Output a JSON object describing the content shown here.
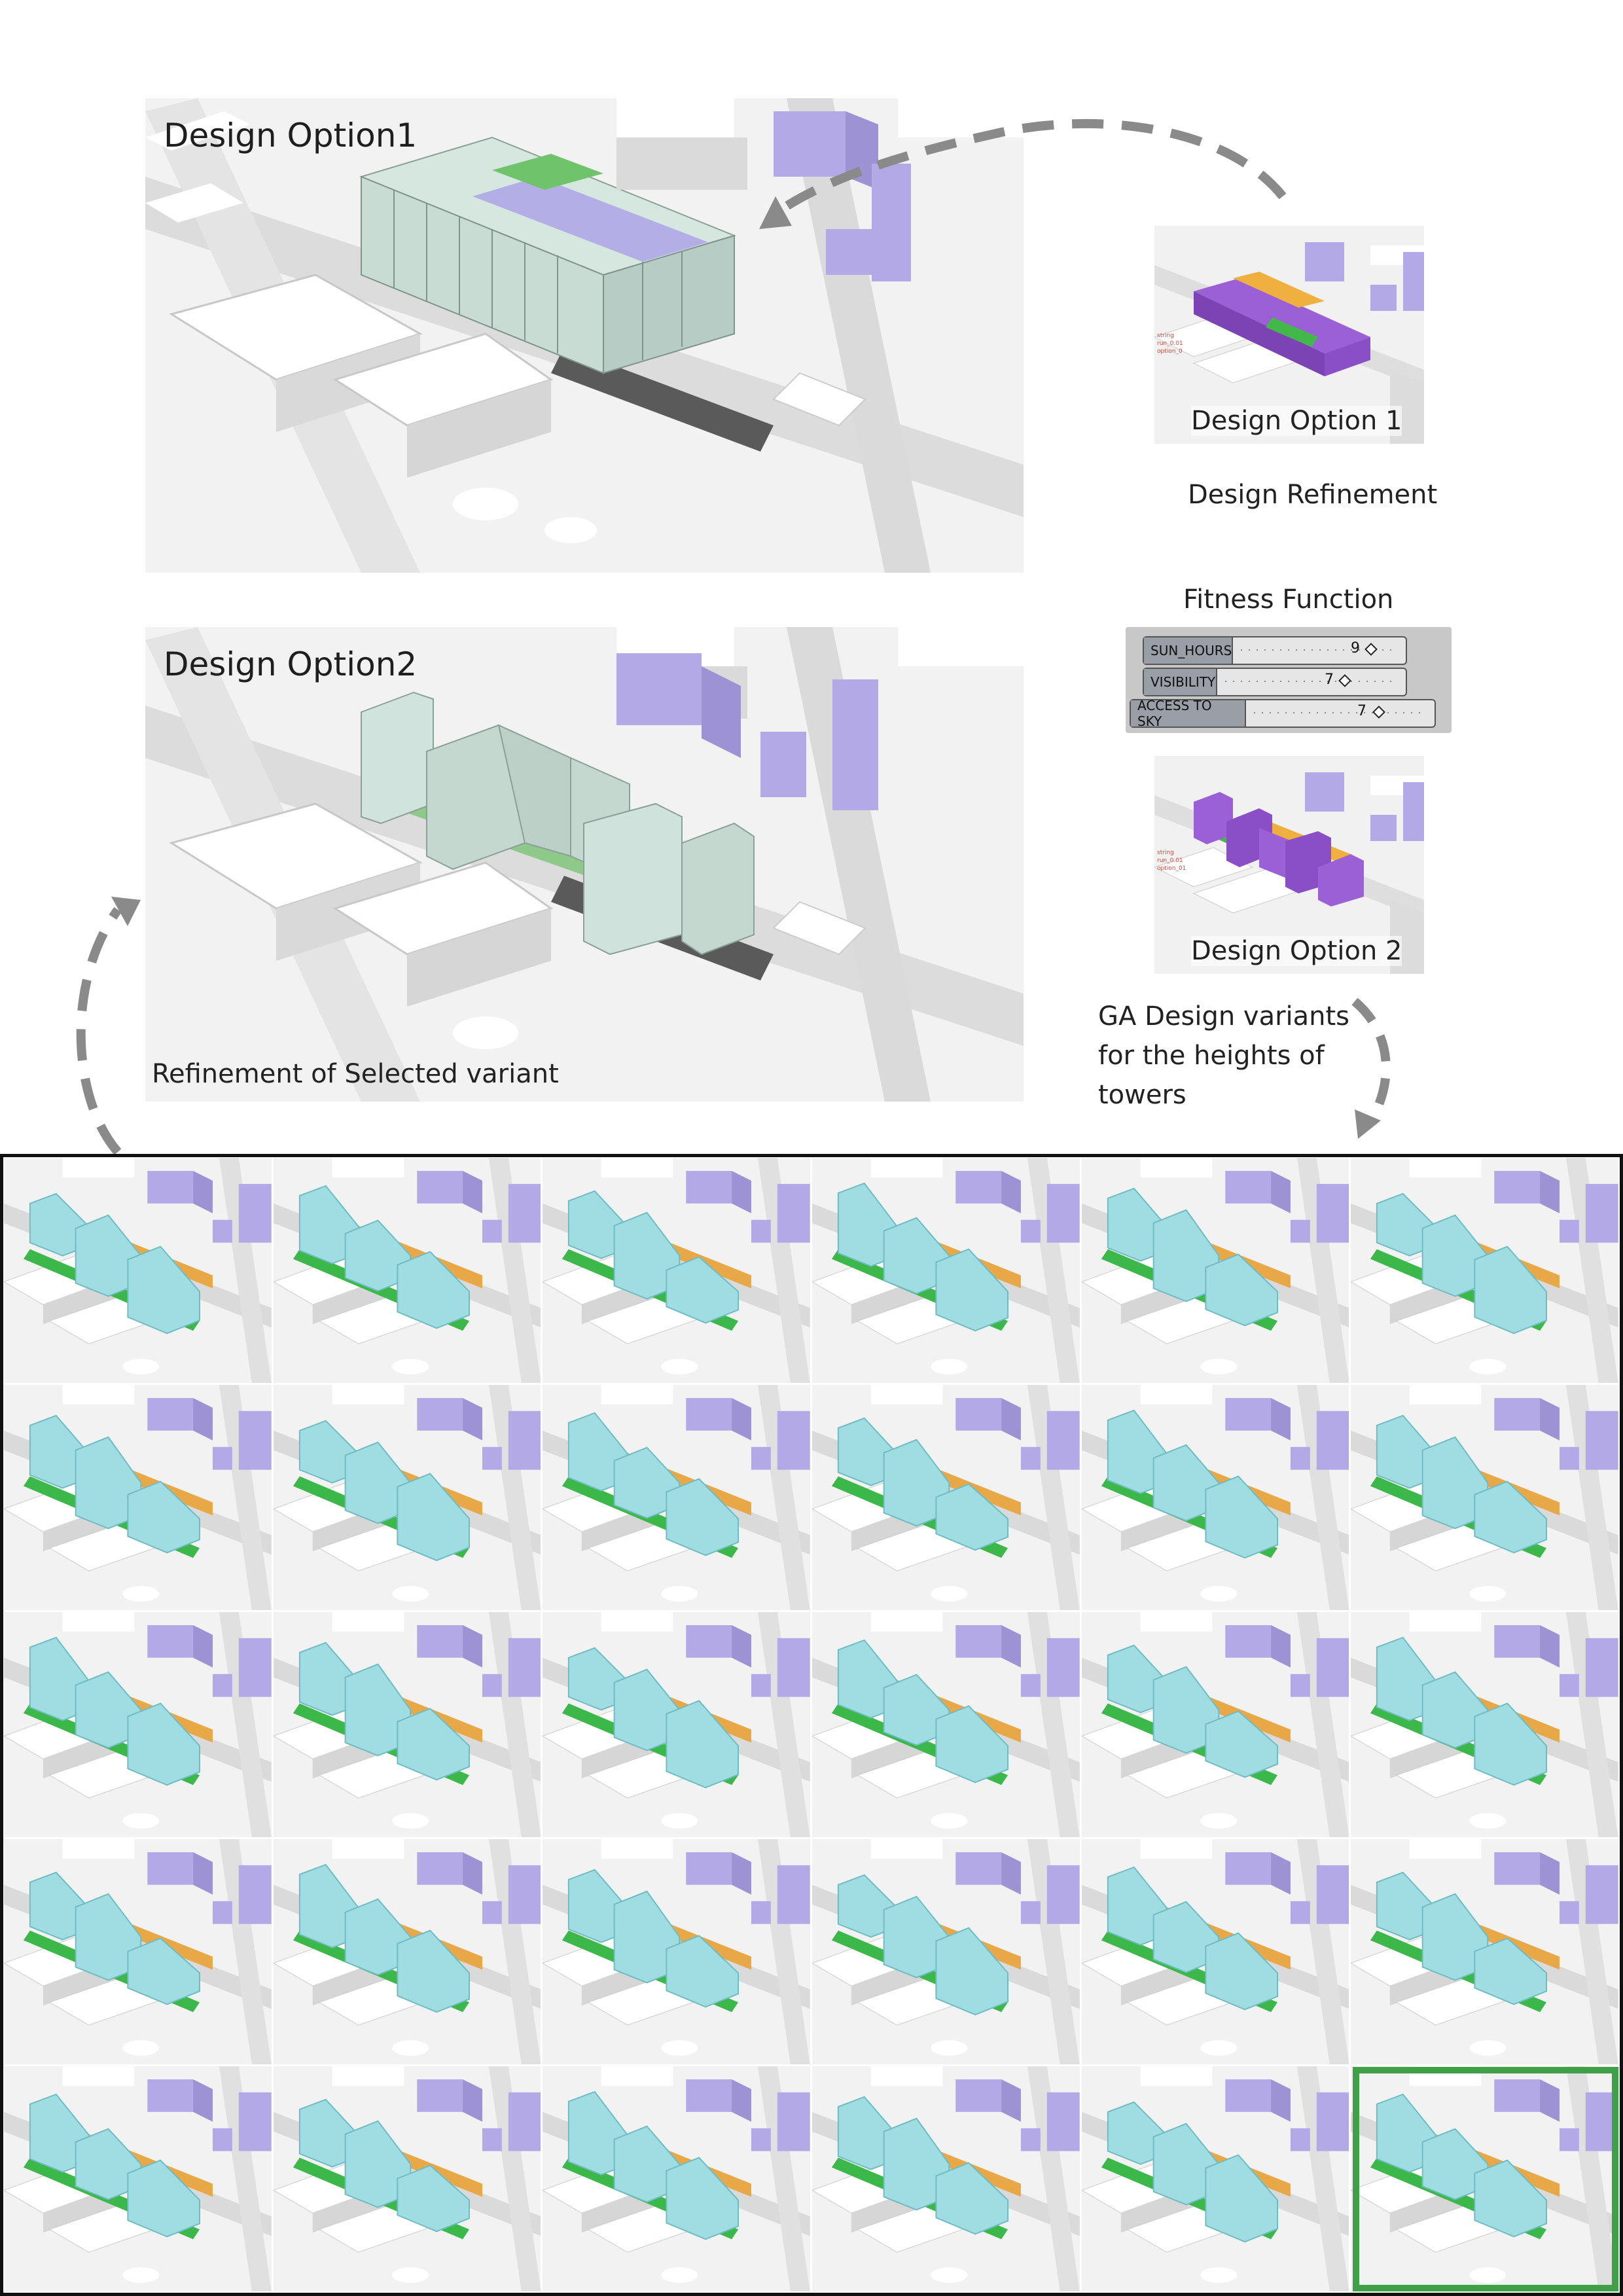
{
  "option1": {
    "title": "Design Option1"
  },
  "option2": {
    "title": "Design Option2",
    "subcaption": "Refinement of Selected variant"
  },
  "thumb1": {
    "caption": "Design Option 1"
  },
  "thumb2": {
    "caption": "Design Option 2"
  },
  "refinement_label": "Design Refinement",
  "fitness": {
    "title": "Fitness Function",
    "sliders": [
      {
        "label": "SUN_HOURS",
        "value": "9"
      },
      {
        "label": "VISIBILITY",
        "value": "7"
      },
      {
        "label": "ACCESS TO SKY",
        "value": "7"
      }
    ]
  },
  "ga_label": {
    "line1": "GA Design variants",
    "line2": "for the heights of",
    "line3": "towers"
  },
  "colors": {
    "context_purple": "#b3a9e6",
    "option_purple": "#9b5fd6",
    "tower_cyan": "#9fdde2",
    "glass": "#cfe3dc",
    "courtyard_green": "#3cb84a",
    "podium_orange": "#e8a848",
    "selection_green": "#3fa048",
    "arrow_gray": "#8a8a8a"
  },
  "grid": {
    "rows": 5,
    "cols": 6,
    "selected_row": 5,
    "selected_col": 6
  }
}
